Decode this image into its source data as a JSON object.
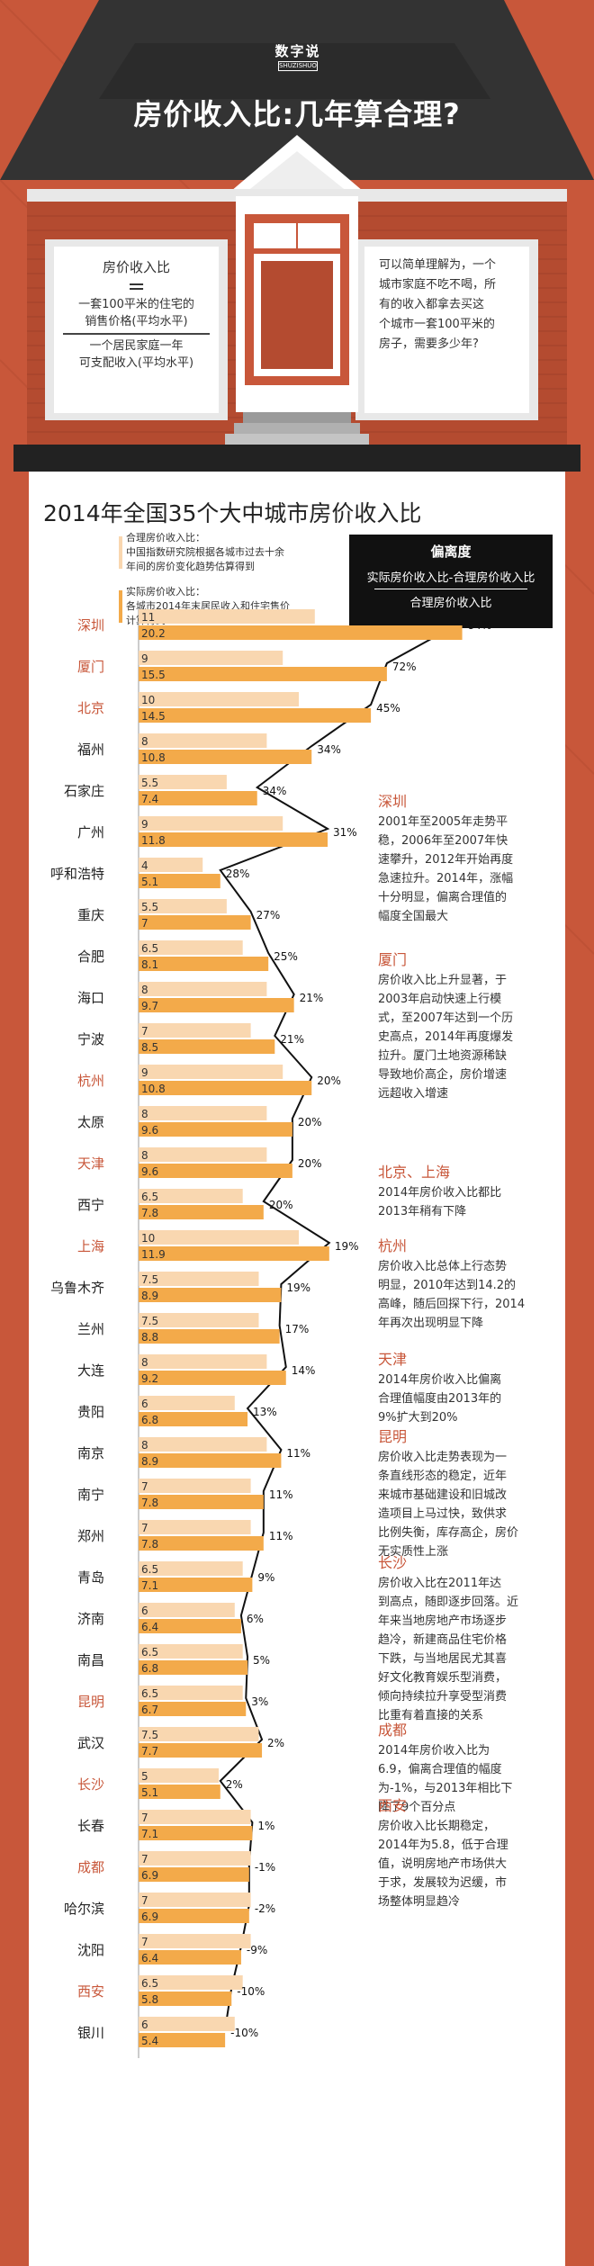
{
  "logo": {
    "title": "数字说",
    "subtitle": "SHUZISHUO"
  },
  "header": {
    "title": "房价收入比:几年算合理?"
  },
  "left_box": {
    "term": "房价收入比",
    "equals": "=",
    "numerator": "一套100平米的住宅的\n销售价格(平均水平)",
    "denominator": "一个居民家庭一年\n可支配收入(平均水平)"
  },
  "right_box": {
    "text": "可以简单理解为，一个\n城市家庭不吃不喝，所\n有的收入都拿去买这\n个城市一套100平米的\n房子，需要多少年?"
  },
  "chart_title": "2014年全国35个大中城市房价收入比",
  "legend": {
    "fair_title": "合理房价收入比：",
    "fair_desc": "中国指数研究院根据各城市过去十余\n年间的房价变化趋势估算得到",
    "actual_title": "实际房价收入比：",
    "actual_desc": "各城市2014年末居民收入和住宅售价\n计算得到"
  },
  "deviation_box": {
    "title": "偏离度",
    "numerator": "实际房价收入比-合理房价收入比",
    "denominator": "合理房价收入比"
  },
  "colors": {
    "background": "#c8573a",
    "roof": "#333333",
    "fair_bar": "#f9d7b0",
    "actual_bar": "#f3aa4a",
    "highlight": "#c8573a"
  },
  "chart_data": {
    "type": "bar",
    "categories": [
      "深圳",
      "厦门",
      "北京",
      "福州",
      "石家庄",
      "广州",
      "呼和浩特",
      "重庆",
      "合肥",
      "海口",
      "宁波",
      "杭州",
      "太原",
      "天津",
      "西宁",
      "上海",
      "乌鲁木齐",
      "兰州",
      "大连",
      "贵阳",
      "南京",
      "南宁",
      "郑州",
      "青岛",
      "济南",
      "南昌",
      "昆明",
      "武汉",
      "长沙",
      "长春",
      "成都",
      "哈尔滨",
      "沈阳",
      "西安",
      "银川"
    ],
    "highlighted": [
      "深圳",
      "厦门",
      "北京",
      "杭州",
      "天津",
      "上海",
      "昆明",
      "长沙",
      "成都",
      "西安"
    ],
    "series": [
      {
        "name": "合理房价收入比",
        "values": [
          11,
          9,
          10,
          8,
          5.5,
          9,
          4,
          5.5,
          6.5,
          8,
          7,
          9,
          8,
          8,
          6.5,
          10,
          7.5,
          7.5,
          8,
          6,
          8,
          7,
          7,
          6.5,
          6,
          6.5,
          6.5,
          7.5,
          5,
          7,
          7,
          7,
          7,
          6.5,
          6
        ]
      },
      {
        "name": "实际房价收入比",
        "values": [
          20.2,
          15.5,
          14.5,
          10.8,
          7.4,
          11.8,
          5.1,
          7,
          8.1,
          9.7,
          8.5,
          10.8,
          9.6,
          9.6,
          7.8,
          11.9,
          8.9,
          8.8,
          9.2,
          6.8,
          8.9,
          7.8,
          7.8,
          7.1,
          6.4,
          6.8,
          6.7,
          7.7,
          5.1,
          7.1,
          6.9,
          6.9,
          6.4,
          5.8,
          5.4
        ]
      },
      {
        "name": "偏离度",
        "values": [
          "84%",
          "72%",
          "45%",
          "34%",
          "34%",
          "31%",
          "28%",
          "27%",
          "25%",
          "21%",
          "21%",
          "20%",
          "20%",
          "20%",
          "20%",
          "19%",
          "19%",
          "17%",
          "14%",
          "13%",
          "11%",
          "11%",
          "11%",
          "9%",
          "6%",
          "5%",
          "3%",
          "2%",
          "2%",
          "1%",
          "-1%",
          "-2%",
          "-9%",
          "-10%",
          "-10%"
        ]
      }
    ],
    "xlim": [
      0,
      22
    ]
  },
  "notes": [
    {
      "title": "深圳",
      "body": "2001年至2005年走势平\n稳，2006年至2007年快\n速攀升，2012年开始再度\n急速拉升。2014年，涨幅\n十分明显，偏离合理值的\n幅度全国最大"
    },
    {
      "title": "厦门",
      "body": "房价收入比上升显著，于\n2003年启动快速上行模\n式，至2007年达到一个历\n史高点，2014年再度爆发\n拉升。厦门土地资源稀缺\n导致地价高企，房价增速\n远超收入增速"
    },
    {
      "title": "北京、上海",
      "body": "2014年房价收入比都比\n2013年稍有下降"
    },
    {
      "title": "杭州",
      "body": "房价收入比总体上行态势\n明显，2010年达到14.2的\n高峰，随后回探下行，2014\n年再次出现明显下降"
    },
    {
      "title": "天津",
      "body": "2014年房价收入比偏离\n合理值幅度由2013年的\n9%扩大到20%"
    },
    {
      "title": "昆明",
      "body": "房价收入比走势表现为一\n条直线形态的稳定，近年\n来城市基础建设和旧城改\n造项目上马过快，致供求\n比例失衡，库存高企，房价\n无实质性上涨"
    },
    {
      "title": "长沙",
      "body": "房价收入比在2011年达\n到高点，随即逐步回落。近\n年来当地房地产市场逐步\n趋冷，新建商品住宅价格\n下跌，与当地居民尤其喜\n好文化教育娱乐型消费，\n倾向持续拉升享受型消费\n比重有着直接的关系"
    },
    {
      "title": "成都",
      "body": "2014年房价收入比为\n6.9，偏离合理值的幅度\n为-1%，与2013年相比下\n降了9个百分点"
    },
    {
      "title": "西安",
      "body": "房价收入比长期稳定，\n2014年为5.8，低于合理\n值，说明房地产市场供大\n于求，发展较为迟缓，市\n场整体明显趋冷"
    }
  ]
}
